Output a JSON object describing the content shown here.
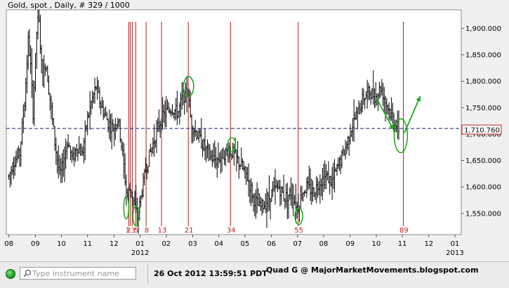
{
  "header": {
    "title": "Gold, spot , Daily, # 329 / 1000"
  },
  "status_bar": {
    "search_placeholder": "Type instrument name",
    "timestamp": "26 Oct 2012 13:59:51 PDT",
    "credit": "Quad G @ MajorMarketMovements.blogspot.com"
  },
  "colors": {
    "candles": "#000000",
    "fib_lines": "#b02020",
    "fib_labels": "#c02020",
    "dashed_line": "#1a1a80",
    "annotations": "#22aa22",
    "price_box": "#c02020"
  },
  "chart_data": {
    "type": "ohlc",
    "title": "Gold, spot , Daily, # 329 / 1000",
    "y_ticks": [
      1550,
      1600,
      1650,
      1700,
      1750,
      1800,
      1850,
      1900
    ],
    "y_tick_labels": [
      "1,550.000",
      "1,600.000",
      "1,650.000",
      "1,700.000",
      "1,750.000",
      "1,800.000",
      "1,850.000",
      "1,900.000"
    ],
    "ylim": [
      1510,
      1935
    ],
    "x_ticks": [
      {
        "label": "08",
        "t": 2011.583
      },
      {
        "label": "09",
        "t": 2011.667
      },
      {
        "label": "10",
        "t": 2011.75
      },
      {
        "label": "11",
        "t": 2011.833
      },
      {
        "label": "12",
        "t": 2011.917
      },
      {
        "label": "01",
        "t": 2012.0,
        "year": "2012"
      },
      {
        "label": "02",
        "t": 2012.083
      },
      {
        "label": "03",
        "t": 2012.167
      },
      {
        "label": "04",
        "t": 2012.25
      },
      {
        "label": "05",
        "t": 2012.333
      },
      {
        "label": "06",
        "t": 2012.417
      },
      {
        "label": "07",
        "t": 2012.5
      },
      {
        "label": "08",
        "t": 2012.583
      },
      {
        "label": "09",
        "t": 2012.667
      },
      {
        "label": "10",
        "t": 2012.75
      },
      {
        "label": "11",
        "t": 2012.833
      },
      {
        "label": "12",
        "t": 2012.917
      },
      {
        "label": "01",
        "t": 2013.0,
        "year": "2013"
      }
    ],
    "xlim": [
      2011.575,
      2013.02
    ],
    "dashed_level": 1710.76,
    "current_price_label": "1,710.760",
    "fib_lines": [
      {
        "label": "1",
        "t": 2011.964
      },
      {
        "label": "2",
        "t": 2011.969
      },
      {
        "label": "3",
        "t": 2011.975
      },
      {
        "label": "5",
        "t": 2011.986
      },
      {
        "label": "8",
        "t": 2012.019
      },
      {
        "label": "13",
        "t": 2012.068
      },
      {
        "label": "21",
        "t": 2012.153
      },
      {
        "label": "34",
        "t": 2012.287
      },
      {
        "label": "55",
        "t": 2012.502
      },
      {
        "label": "89",
        "t": 2012.836
      }
    ],
    "fib_text_labels": [
      {
        "text": "1",
        "t": 2011.961
      },
      {
        "text": "23",
        "t": 2011.971
      },
      {
        "text": "5",
        "t": 2011.988
      },
      {
        "text": "8",
        "t": 2012.021
      },
      {
        "text": "13",
        "t": 2012.07
      },
      {
        "text": "21",
        "t": 2012.155
      },
      {
        "text": "34",
        "t": 2012.289
      },
      {
        "text": "55",
        "t": 2012.504
      },
      {
        "text": "89",
        "t": 2012.838
      }
    ],
    "circles": [
      {
        "t": 2011.956,
        "price": 1561,
        "rx": 0.008,
        "ry": 16
      },
      {
        "t": 2011.987,
        "price": 1545,
        "rx": 0.01,
        "ry": 14
      },
      {
        "t": 2012.154,
        "price": 1790,
        "rx": 0.016,
        "ry": 14
      },
      {
        "t": 2012.291,
        "price": 1680,
        "rx": 0.012,
        "ry": 10
      },
      {
        "t": 2012.504,
        "price": 1545,
        "rx": 0.012,
        "ry": 12
      },
      {
        "t": 2012.828,
        "price": 1697,
        "rx": 0.021,
        "ry": 24
      }
    ],
    "arrows": [
      {
        "from": [
          2012.751,
          1768
        ],
        "to": [
          2012.805,
          1708
        ]
      },
      {
        "from": [
          2012.839,
          1702
        ],
        "to": [
          2012.89,
          1772
        ]
      }
    ],
    "path_points": [
      [
        2011.583,
        1620
      ],
      [
        2011.6,
        1650
      ],
      [
        2011.617,
        1660
      ],
      [
        2011.633,
        1760
      ],
      [
        2011.645,
        1880
      ],
      [
        2011.652,
        1830
      ],
      [
        2011.66,
        1740
      ],
      [
        2011.672,
        1900
      ],
      [
        2011.678,
        1920
      ],
      [
        2011.69,
        1800
      ],
      [
        2011.7,
        1840
      ],
      [
        2011.715,
        1760
      ],
      [
        2011.73,
        1680
      ],
      [
        2011.745,
        1620
      ],
      [
        2011.755,
        1640
      ],
      [
        2011.77,
        1690
      ],
      [
        2011.785,
        1650
      ],
      [
        2011.8,
        1680
      ],
      [
        2011.815,
        1660
      ],
      [
        2011.83,
        1720
      ],
      [
        2011.845,
        1760
      ],
      [
        2011.86,
        1790
      ],
      [
        2011.872,
        1760
      ],
      [
        2011.885,
        1740
      ],
      [
        2011.9,
        1720
      ],
      [
        2011.915,
        1710
      ],
      [
        2011.93,
        1730
      ],
      [
        2011.945,
        1660
      ],
      [
        2011.958,
        1580
      ],
      [
        2011.97,
        1600
      ],
      [
        2011.98,
        1570
      ],
      [
        2011.992,
        1540
      ],
      [
        2012.005,
        1590
      ],
      [
        2012.02,
        1640
      ],
      [
        2012.04,
        1680
      ],
      [
        2012.06,
        1720
      ],
      [
        2012.08,
        1740
      ],
      [
        2012.1,
        1750
      ],
      [
        2012.12,
        1740
      ],
      [
        2012.135,
        1770
      ],
      [
        2012.152,
        1780
      ],
      [
        2012.162,
        1720
      ],
      [
        2012.18,
        1700
      ],
      [
        2012.2,
        1680
      ],
      [
        2012.22,
        1660
      ],
      [
        2012.24,
        1650
      ],
      [
        2012.26,
        1660
      ],
      [
        2012.285,
        1670
      ],
      [
        2012.3,
        1660
      ],
      [
        2012.32,
        1640
      ],
      [
        2012.34,
        1620
      ],
      [
        2012.36,
        1580
      ],
      [
        2012.38,
        1560
      ],
      [
        2012.4,
        1570
      ],
      [
        2012.42,
        1590
      ],
      [
        2012.44,
        1600
      ],
      [
        2012.46,
        1580
      ],
      [
        2012.48,
        1590
      ],
      [
        2012.5,
        1560
      ],
      [
        2012.515,
        1590
      ],
      [
        2012.53,
        1600
      ],
      [
        2012.55,
        1590
      ],
      [
        2012.57,
        1610
      ],
      [
        2012.59,
        1620
      ],
      [
        2012.61,
        1610
      ],
      [
        2012.63,
        1640
      ],
      [
        2012.65,
        1670
      ],
      [
        2012.67,
        1710
      ],
      [
        2012.69,
        1740
      ],
      [
        2012.71,
        1770
      ],
      [
        2012.73,
        1780
      ],
      [
        2012.75,
        1770
      ],
      [
        2012.765,
        1790
      ],
      [
        2012.78,
        1760
      ],
      [
        2012.795,
        1740
      ],
      [
        2012.81,
        1720
      ],
      [
        2012.822,
        1710
      ]
    ]
  }
}
